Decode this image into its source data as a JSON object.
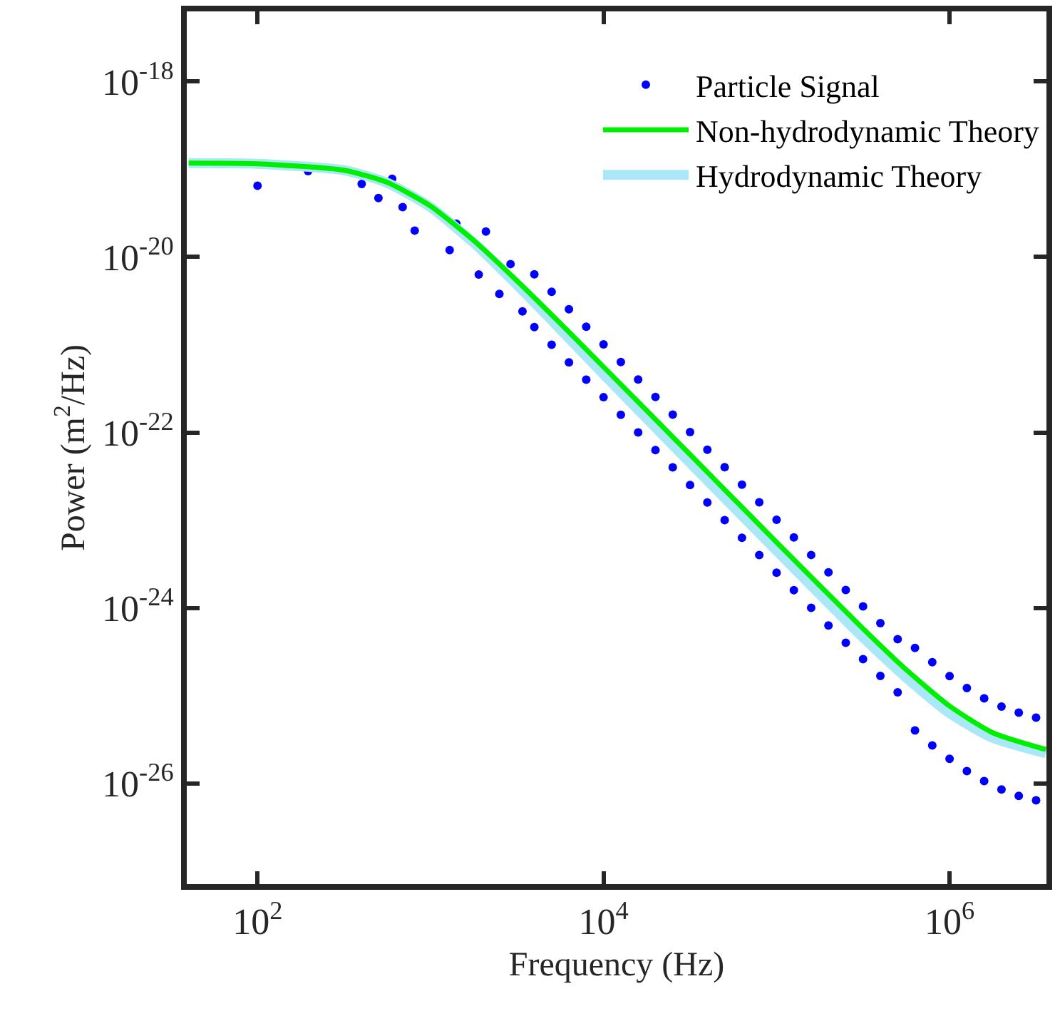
{
  "chart_data": {
    "type": "scatter",
    "xlabel": "Frequency (Hz)",
    "ylabel": "Power (m$^{2}$/Hz)",
    "log": "xy",
    "grid": false,
    "legend": "top right",
    "line_style": "solid",
    "xlim": [
      39,
      3630000
    ],
    "ylim": [
      7.1e-28,
      6.3e-18
    ],
    "xticks": [
      {
        "value": 100,
        "label": "10$^{2}$"
      },
      {
        "value": 10000,
        "label": "10$^{4}$"
      },
      {
        "value": 1000000,
        "label": "10$^{6}$"
      }
    ],
    "yticks": [
      {
        "value": 1e-26,
        "label": "10$^{-26}$"
      },
      {
        "value": 1e-24,
        "label": "10$^{-24}$"
      },
      {
        "value": 1e-22,
        "label": "10$^{-22}$"
      },
      {
        "value": 1e-20,
        "label": "10$^{-20}$"
      },
      {
        "value": 1e-18,
        "label": "10$^{-18}$"
      }
    ],
    "series": [
      {
        "name": "Particle Signal",
        "color": "#0000ff",
        "x": [
          100,
          196,
          400,
          500,
          600,
          690,
          810,
          1290,
          1410,
          1900,
          2090,
          2500,
          2900,
          3400,
          3981,
          5012,
          6310,
          7943,
          10000,
          12589,
          15849,
          19953,
          25119,
          31623,
          39811,
          50119,
          63096,
          79433,
          100000,
          125893,
          158489,
          199526,
          251189,
          316228,
          398107,
          501187,
          630957,
          794328,
          1000000,
          1258925,
          1584893,
          1995262,
          2511886,
          3162278,
          3981,
          5012,
          6310,
          7943,
          10000,
          12589,
          15849,
          19953,
          25119,
          31623,
          39811,
          50119,
          63096,
          79433,
          100000,
          125893,
          158489,
          199526,
          251189,
          316228,
          398107,
          501187,
          630957,
          794328,
          1000000,
          1258925,
          1584893,
          1995262,
          2511886,
          3162278
        ],
        "values": [
          6.5e-20,
          9.5e-20,
          6.8e-20,
          4.7e-20,
          7.8e-20,
          3.7e-20,
          2e-20,
          1.2e-20,
          2.4e-20,
          6.3e-21,
          1.95e-20,
          3.8e-21,
          8.3e-21,
          2.4e-21,
          6.35e-21,
          4.01e-21,
          2.54e-21,
          1.6e-21,
          1.01e-21,
          6.35e-22,
          4.01e-22,
          2.54e-22,
          1.6e-22,
          1.01e-22,
          6.35e-23,
          4.01e-23,
          2.54e-23,
          1.6e-23,
          1.01e-23,
          6.35e-24,
          4.01e-24,
          2.54e-24,
          1.6e-24,
          1.04e-24,
          6.7e-25,
          4.4e-25,
          3.5e-25,
          2.4e-25,
          1.67e-25,
          1.22e-25,
          9.3e-26,
          7.5e-26,
          6.4e-26,
          5.6e-26,
          1.59e-21,
          1e-21,
          6.3e-22,
          4e-22,
          2.52e-22,
          1.59e-22,
          1e-22,
          6.3e-23,
          4e-23,
          2.52e-23,
          1.59e-23,
          1e-23,
          6.3e-24,
          4e-24,
          2.52e-24,
          1.59e-24,
          1e-24,
          6.3e-25,
          4e-25,
          2.6e-25,
          1.68e-25,
          1.09e-25,
          4e-26,
          2.7e-26,
          1.9e-26,
          1.38e-26,
          1.06e-26,
          8.5e-27,
          7.2e-27,
          6.4e-27
        ]
      },
      {
        "name": "Non-hydrodynamic Theory",
        "type": "line",
        "color": "#00ee00",
        "x": [
          40,
          100,
          316,
          562,
          1000,
          1778,
          3162,
          5623,
          10000,
          31623,
          100000,
          316228,
          562341,
          1000000,
          1778279,
          3600000
        ],
        "values": [
          1.176e-19,
          1.156e-19,
          9.75e-20,
          7.08e-20,
          3.8e-20,
          1.54e-20,
          5.35e-21,
          1.75e-21,
          5.58e-22,
          5.6e-23,
          5.6e-24,
          5.8e-25,
          1.97e-25,
          7.6e-26,
          3.77e-26,
          2.43e-26
        ]
      },
      {
        "name": "Hydrodynamic Theory",
        "type": "line",
        "color": "#aae8f8",
        "x": [
          40,
          100,
          316,
          562,
          1000,
          1778,
          3162,
          5623,
          10000,
          31623,
          100000,
          316228,
          562341,
          1000000,
          1778279,
          3600000
        ],
        "values": [
          1.176e-19,
          1.156e-19,
          9.75e-20,
          7e-20,
          3.7e-20,
          1.45e-20,
          4.8e-21,
          1.5e-21,
          4.6e-22,
          4.5e-23,
          4.5e-24,
          4.6e-25,
          1.6e-25,
          6.3e-26,
          3.3e-26,
          2.2e-26
        ]
      }
    ]
  }
}
